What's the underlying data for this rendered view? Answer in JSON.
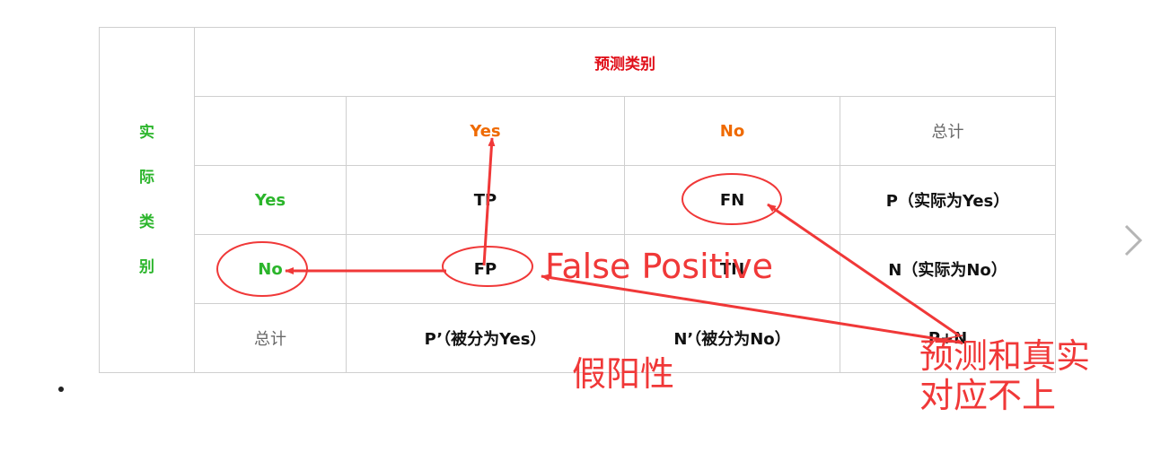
{
  "table": {
    "predicted_header": "预测类别",
    "actual_label_chars": [
      "实",
      "际",
      "类",
      "别"
    ],
    "col_headers": [
      "Yes",
      "No",
      "总计"
    ],
    "rows": [
      {
        "label": "Yes",
        "cells": [
          "TP",
          "FN",
          "P（实际为Yes）"
        ]
      },
      {
        "label": "No",
        "cells": [
          "FP",
          "TN",
          "N（实际为No）"
        ]
      },
      {
        "label": "总计",
        "cells": [
          "P’（被分为Yes）",
          "N’（被分为No）",
          "P+N"
        ]
      }
    ]
  },
  "annotations": {
    "false_positive": "False Positive",
    "fp_chinese": "假阳性",
    "mismatch_note": "预测和真实\n对应不上"
  },
  "colors": {
    "annotation_red": "#f03838",
    "header_red": "#e0101a",
    "yes_orange": "#ef6a00",
    "actual_green": "#2bb52b"
  },
  "icons": {
    "next": "chevron-right-icon",
    "bullet": "bullet-dot-icon"
  }
}
